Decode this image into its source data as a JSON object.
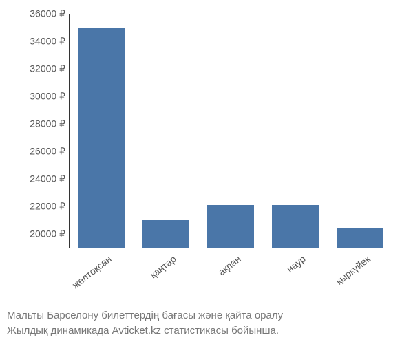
{
  "chart": {
    "type": "bar",
    "background_color": "#ffffff",
    "bar_color": "#4a76a8",
    "axis_color": "#333333",
    "tick_label_color": "#555555",
    "caption_color": "#777777",
    "tick_label_fontsize": 14,
    "caption_fontsize": 15,
    "ylim": [
      19000,
      36000
    ],
    "ytick_step": 2000,
    "currency_symbol": "₽",
    "yticks": [
      20000,
      22000,
      24000,
      26000,
      28000,
      30000,
      32000,
      34000,
      36000
    ],
    "ytick_labels": [
      "20000 ₽",
      "22000 ₽",
      "24000 ₽",
      "26000 ₽",
      "28000 ₽",
      "30000 ₽",
      "32000 ₽",
      "34000 ₽",
      "36000 ₽"
    ],
    "categories": [
      "желтоқсан",
      "қаңтар",
      "ақпан",
      "наур",
      "қыркүйек"
    ],
    "values": [
      35000,
      21000,
      22100,
      22100,
      20400
    ],
    "bar_width": 0.72,
    "x_label_rotation_deg": -38
  },
  "caption": {
    "line1": "Мальты Барселону билеттердің бағасы және қайта оралу",
    "line2": "Жылдық динамикада Avticket.kz статистикасы бойынша."
  }
}
